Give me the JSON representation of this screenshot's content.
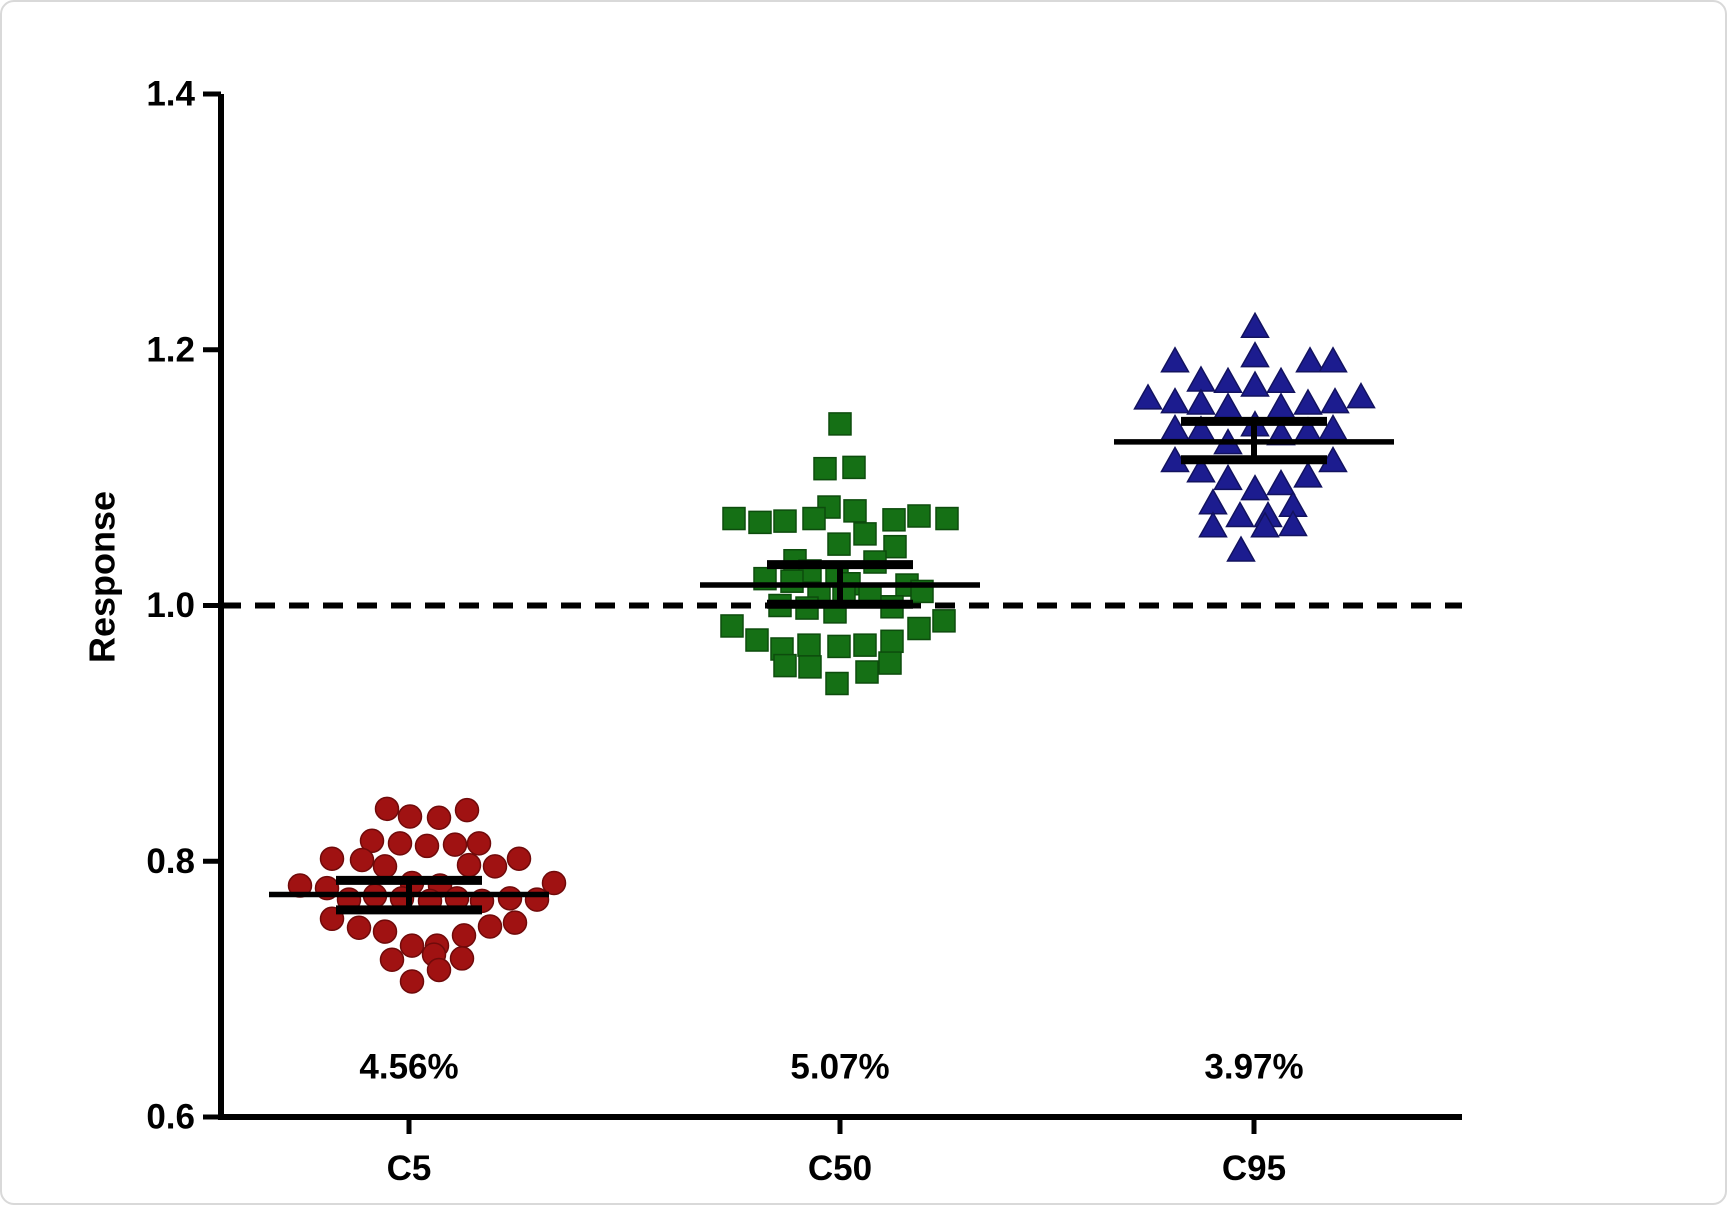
{
  "figure": {
    "background_color": "#ffffff",
    "border_color": "#d9d9d9"
  },
  "chart_data": {
    "type": "scatter",
    "subtype": "beeswarm-dot-plot-with-mean-and-error-bars",
    "title": "",
    "xlabel": "",
    "ylabel": "Response",
    "ylim": [
      0.6,
      1.4
    ],
    "yticks": [
      0.6,
      0.8,
      1.0,
      1.2,
      1.4
    ],
    "ytick_labels": [
      "0.6",
      "0.8",
      "1.0",
      "1.2",
      "1.4"
    ],
    "categories": [
      "C5",
      "C50",
      "C95"
    ],
    "cv_labels": [
      "4.56%",
      "5.07%",
      "3.97%"
    ],
    "reference_line": {
      "y": 1.0,
      "style": "dashed",
      "color": "#000000"
    },
    "grid": false,
    "legend": "none",
    "axis_color": "#000000",
    "error_bar_color": "#000000",
    "groups": [
      {
        "label": "C5",
        "cv": "4.56%",
        "marker": "circle",
        "color": "#a01212",
        "edge_color": "#700a0a",
        "mean": 0.774,
        "err_high": 0.785,
        "err_low": 0.762,
        "points": [
          [
            -22,
            0.841
          ],
          [
            1,
            0.835
          ],
          [
            30,
            0.834
          ],
          [
            58,
            0.84
          ],
          [
            -37,
            0.816
          ],
          [
            -9,
            0.814
          ],
          [
            18,
            0.812
          ],
          [
            46,
            0.813
          ],
          [
            70,
            0.814
          ],
          [
            -77,
            0.802
          ],
          [
            -47,
            0.801
          ],
          [
            -24,
            0.796
          ],
          [
            60,
            0.797
          ],
          [
            86,
            0.796
          ],
          [
            110,
            0.802
          ],
          [
            -109,
            0.781
          ],
          [
            -82,
            0.779
          ],
          [
            3,
            0.783
          ],
          [
            31,
            0.781
          ],
          [
            145,
            0.783
          ],
          [
            -60,
            0.77
          ],
          [
            -34,
            0.773
          ],
          [
            -7,
            0.771
          ],
          [
            21,
            0.769
          ],
          [
            48,
            0.771
          ],
          [
            73,
            0.769
          ],
          [
            101,
            0.771
          ],
          [
            128,
            0.77
          ],
          [
            -77,
            0.755
          ],
          [
            -50,
            0.748
          ],
          [
            -24,
            0.745
          ],
          [
            3,
            0.734
          ],
          [
            28,
            0.734
          ],
          [
            55,
            0.742
          ],
          [
            81,
            0.749
          ],
          [
            106,
            0.752
          ],
          [
            -17,
            0.723
          ],
          [
            25,
            0.727
          ],
          [
            30,
            0.715
          ],
          [
            53,
            0.724
          ],
          [
            3,
            0.706
          ]
        ]
      },
      {
        "label": "C50",
        "cv": "5.07%",
        "marker": "square",
        "color": "#157015",
        "edge_color": "#0d4c0d",
        "mean": 1.016,
        "err_high": 1.032,
        "err_low": 1.001,
        "points": [
          [
            0,
            1.142
          ],
          [
            -15,
            1.107
          ],
          [
            14,
            1.108
          ],
          [
            -11,
            1.077
          ],
          [
            15,
            1.074
          ],
          [
            -106,
            1.068
          ],
          [
            -80,
            1.065
          ],
          [
            -55,
            1.066
          ],
          [
            -26,
            1.068
          ],
          [
            54,
            1.067
          ],
          [
            79,
            1.07
          ],
          [
            107,
            1.068
          ],
          [
            25,
            1.056
          ],
          [
            -1,
            1.048
          ],
          [
            55,
            1.046
          ],
          [
            -45,
            1.035
          ],
          [
            35,
            1.034
          ],
          [
            -30,
            1.027
          ],
          [
            -3,
            1.026
          ],
          [
            -75,
            1.021
          ],
          [
            -48,
            1.019
          ],
          [
            9,
            1.017
          ],
          [
            67,
            1.016
          ],
          [
            -21,
            1.008
          ],
          [
            4,
            1.007
          ],
          [
            30,
            1.008
          ],
          [
            82,
            1.011
          ],
          [
            -60,
            1.0
          ],
          [
            -33,
            0.998
          ],
          [
            52,
            0.999
          ],
          [
            -5,
            0.995
          ],
          [
            104,
            0.988
          ],
          [
            -108,
            0.984
          ],
          [
            -83,
            0.973
          ],
          [
            79,
            0.982
          ],
          [
            -58,
            0.966
          ],
          [
            -31,
            0.969
          ],
          [
            -1,
            0.968
          ],
          [
            25,
            0.969
          ],
          [
            52,
            0.972
          ],
          [
            -55,
            0.953
          ],
          [
            -30,
            0.952
          ],
          [
            27,
            0.948
          ],
          [
            50,
            0.955
          ],
          [
            -3,
            0.939
          ]
        ]
      },
      {
        "label": "C95",
        "cv": "3.97%",
        "marker": "triangle",
        "color": "#1c1c8f",
        "edge_color": "#12125f",
        "mean": 1.128,
        "err_high": 1.144,
        "err_low": 1.114,
        "points": [
          [
            1,
            1.218
          ],
          [
            -79,
            1.191
          ],
          [
            1,
            1.195
          ],
          [
            56,
            1.191
          ],
          [
            79,
            1.191
          ],
          [
            -53,
            1.176
          ],
          [
            -26,
            1.175
          ],
          [
            1,
            1.172
          ],
          [
            27,
            1.175
          ],
          [
            -106,
            1.162
          ],
          [
            -79,
            1.159
          ],
          [
            -53,
            1.158
          ],
          [
            -26,
            1.155
          ],
          [
            27,
            1.155
          ],
          [
            54,
            1.158
          ],
          [
            81,
            1.159
          ],
          [
            107,
            1.163
          ],
          [
            -79,
            1.138
          ],
          [
            -53,
            1.137
          ],
          [
            1,
            1.141
          ],
          [
            27,
            1.134
          ],
          [
            54,
            1.136
          ],
          [
            79,
            1.138
          ],
          [
            -26,
            1.127
          ],
          [
            -79,
            1.113
          ],
          [
            -53,
            1.105
          ],
          [
            -26,
            1.099
          ],
          [
            1,
            1.091
          ],
          [
            27,
            1.095
          ],
          [
            54,
            1.101
          ],
          [
            79,
            1.113
          ],
          [
            -41,
            1.08
          ],
          [
            -14,
            1.07
          ],
          [
            14,
            1.07
          ],
          [
            39,
            1.078
          ],
          [
            -41,
            1.062
          ],
          [
            11,
            1.062
          ],
          [
            39,
            1.063
          ],
          [
            -13,
            1.043
          ]
        ]
      }
    ]
  }
}
